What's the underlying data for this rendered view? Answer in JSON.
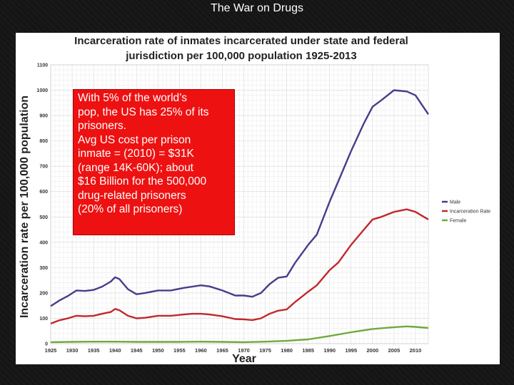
{
  "slide": {
    "title": "The War on Drugs"
  },
  "callout": {
    "lines": [
      "With 5% of the world’s",
      "pop, the US has 25% of its",
      "prisoners.",
      "Avg US cost per prison",
      "inmate = (2010) = $31K",
      "(range 14K-60K); about",
      "$16 Billion for the 500,000",
      "drug-related prisoners",
      "(20% of all prisoners)"
    ]
  },
  "chart_data": {
    "type": "line",
    "title_lines": [
      "Incarceration rate of inmates incarcerated under state and federal",
      "jurisdiction per 100,000 population 1925-2013"
    ],
    "xlabel": "Year",
    "ylabel": "Incarceration rate per 100,000 population",
    "xlim": [
      1925,
      2013
    ],
    "ylim": [
      0,
      1100
    ],
    "x_ticks": [
      "1925",
      "1930",
      "1935",
      "1940",
      "1945",
      "1950",
      "1955",
      "1960",
      "1965",
      "1970",
      "1975",
      "1980",
      "1985",
      "1990",
      "1995",
      "2000",
      "2005",
      "2010"
    ],
    "y_ticks": [
      "0",
      "100",
      "200",
      "300",
      "400",
      "500",
      "600",
      "700",
      "800",
      "900",
      "1000",
      "1100"
    ],
    "grid": true,
    "legend_position": "right",
    "series": [
      {
        "name": "Male",
        "color": "#4b3a8a",
        "x": [
          1925,
          1927,
          1929,
          1931,
          1933,
          1935,
          1937,
          1939,
          1940,
          1941,
          1943,
          1945,
          1947,
          1950,
          1953,
          1956,
          1958,
          1960,
          1962,
          1965,
          1968,
          1970,
          1972,
          1974,
          1976,
          1978,
          1980,
          1982,
          1985,
          1987,
          1990,
          1992,
          1995,
          1998,
          2000,
          2002,
          2005,
          2008,
          2010,
          2012,
          2013
        ],
        "values": [
          148,
          170,
          188,
          210,
          208,
          212,
          225,
          245,
          262,
          255,
          215,
          195,
          200,
          210,
          210,
          220,
          225,
          230,
          226,
          210,
          190,
          190,
          185,
          200,
          235,
          260,
          265,
          320,
          390,
          430,
          560,
          640,
          760,
          870,
          935,
          960,
          1000,
          995,
          980,
          930,
          905
        ]
      },
      {
        "name": "Incarceration Rate",
        "color": "#c0282d",
        "x": [
          1925,
          1927,
          1929,
          1931,
          1933,
          1935,
          1937,
          1939,
          1940,
          1941,
          1943,
          1945,
          1947,
          1950,
          1953,
          1956,
          1958,
          1960,
          1962,
          1965,
          1968,
          1970,
          1972,
          1974,
          1976,
          1978,
          1980,
          1982,
          1985,
          1987,
          1990,
          1992,
          1995,
          1998,
          2000,
          2002,
          2005,
          2008,
          2010,
          2012,
          2013
        ],
        "values": [
          79,
          92,
          100,
          110,
          108,
          110,
          118,
          125,
          137,
          132,
          110,
          100,
          102,
          110,
          110,
          115,
          118,
          118,
          115,
          108,
          97,
          96,
          93,
          100,
          118,
          130,
          135,
          165,
          205,
          230,
          290,
          320,
          390,
          450,
          490,
          500,
          520,
          530,
          520,
          500,
          490
        ]
      },
      {
        "name": "Female",
        "color": "#70a93f",
        "x": [
          1925,
          1930,
          1935,
          1940,
          1945,
          1950,
          1955,
          1960,
          1965,
          1970,
          1975,
          1980,
          1985,
          1990,
          1995,
          2000,
          2005,
          2008,
          2010,
          2013
        ],
        "values": [
          6,
          7,
          8,
          8,
          7,
          7,
          7,
          8,
          7,
          6,
          8,
          11,
          17,
          30,
          45,
          58,
          65,
          68,
          66,
          62
        ]
      }
    ]
  }
}
